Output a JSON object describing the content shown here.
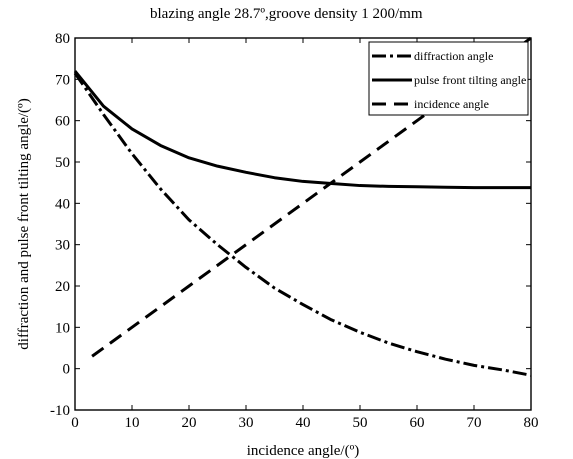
{
  "chart_data": {
    "type": "line",
    "title": "blazing angle 28.7º,groove density 1 200/mm",
    "xlabel": "incidence angle/(º)",
    "ylabel": "diffraction and pulse front tilting angle/(º)",
    "xlim": [
      0,
      80
    ],
    "ylim": [
      -10,
      80
    ],
    "xticks": [
      0,
      10,
      20,
      30,
      40,
      50,
      60,
      70,
      80
    ],
    "yticks": [
      -10,
      0,
      10,
      20,
      30,
      40,
      50,
      60,
      70,
      80
    ],
    "grid": false,
    "legend_position": "top-right",
    "series": [
      {
        "name": "diffraction angle",
        "style": "dash-dot",
        "color": "#000000",
        "x": [
          0,
          5,
          10,
          15,
          20,
          25,
          30,
          35,
          40,
          45,
          50,
          55,
          60,
          65,
          70,
          75,
          80
        ],
        "y": [
          71.5,
          61.5,
          52,
          43.5,
          36,
          30,
          24.5,
          19.5,
          15.5,
          11.8,
          8.8,
          6.2,
          4.1,
          2.3,
          0.8,
          -0.3,
          -1.6
        ]
      },
      {
        "name": "pulse front tilting angle",
        "style": "solid",
        "color": "#000000",
        "x": [
          0,
          5,
          10,
          15,
          20,
          25,
          30,
          35,
          40,
          45,
          50,
          55,
          60,
          65,
          70,
          75,
          80
        ],
        "y": [
          72,
          63.5,
          58,
          54,
          51,
          49,
          47.5,
          46.2,
          45.3,
          44.8,
          44.3,
          44.1,
          44,
          43.9,
          43.8,
          43.8,
          43.8
        ]
      },
      {
        "name": "incidence angle",
        "style": "dashed",
        "color": "#000000",
        "x": [
          3,
          10,
          20,
          30,
          40,
          50,
          60,
          70,
          80
        ],
        "y": [
          3,
          10,
          20,
          30,
          40,
          50,
          60,
          70,
          80
        ]
      }
    ]
  }
}
